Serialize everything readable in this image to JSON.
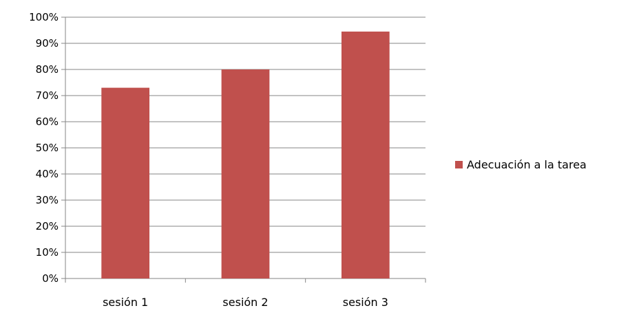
{
  "chart_data": {
    "type": "bar",
    "categories": [
      "sesión 1",
      "sesión 2",
      "sesión 3"
    ],
    "series": [
      {
        "name": "Adecuación a la tarea",
        "values": [
          0.73,
          0.8,
          0.945
        ],
        "color": "#C0504D"
      }
    ],
    "y_ticks": [
      "0%",
      "10%",
      "20%",
      "30%",
      "40%",
      "50%",
      "60%",
      "70%",
      "80%",
      "90%",
      "100%"
    ],
    "ylim": [
      0,
      1
    ],
    "title": "",
    "xlabel": "",
    "ylabel": "",
    "grid": true,
    "legend_position": "right"
  }
}
